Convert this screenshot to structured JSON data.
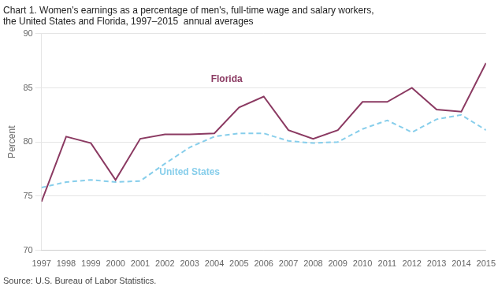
{
  "chart_data": {
    "type": "line",
    "title": [
      "Chart 1. Women's earnings as a percentage of men's, full-time wage and salary workers,",
      "the United States and Florida, 1997–2015  annual averages"
    ],
    "ylabel": "Percent",
    "source": "Source: U.S. Bureau of Labor Statistics.",
    "x": [
      1997,
      1998,
      1999,
      2000,
      2001,
      2002,
      2003,
      2004,
      2005,
      2006,
      2007,
      2008,
      2009,
      2010,
      2011,
      2012,
      2013,
      2014,
      2015
    ],
    "series": [
      {
        "name": "Florida",
        "color": "#8B3A62",
        "line_style": "solid",
        "values": [
          74.5,
          80.5,
          79.9,
          76.5,
          80.3,
          80.7,
          80.7,
          80.8,
          83.2,
          84.2,
          81.1,
          80.3,
          81.1,
          83.7,
          83.7,
          85.0,
          83.0,
          82.8,
          87.3
        ]
      },
      {
        "name": "United States",
        "color": "#87CEEB",
        "line_style": "dashed",
        "values": [
          75.8,
          76.3,
          76.5,
          76.3,
          76.4,
          78.0,
          79.5,
          80.5,
          80.8,
          80.8,
          80.1,
          79.9,
          80.0,
          81.2,
          82.0,
          80.9,
          82.1,
          82.5,
          81.1
        ]
      }
    ],
    "annotations": [
      {
        "text": "Florida",
        "x": 2004.5,
        "y": 85.8,
        "color": "#8B3A62"
      },
      {
        "text": "United States",
        "x": 2003.0,
        "y": 77.2,
        "color": "#87CEEB"
      }
    ],
    "xlim": [
      1997,
      2015
    ],
    "xticks": [
      1997,
      1998,
      1999,
      2000,
      2001,
      2002,
      2003,
      2004,
      2005,
      2006,
      2007,
      2008,
      2009,
      2010,
      2011,
      2012,
      2013,
      2014,
      2015
    ],
    "ylim": [
      70,
      90
    ],
    "yticks": [
      70,
      75,
      80,
      85,
      90
    ],
    "grid": "y",
    "legend": false
  }
}
